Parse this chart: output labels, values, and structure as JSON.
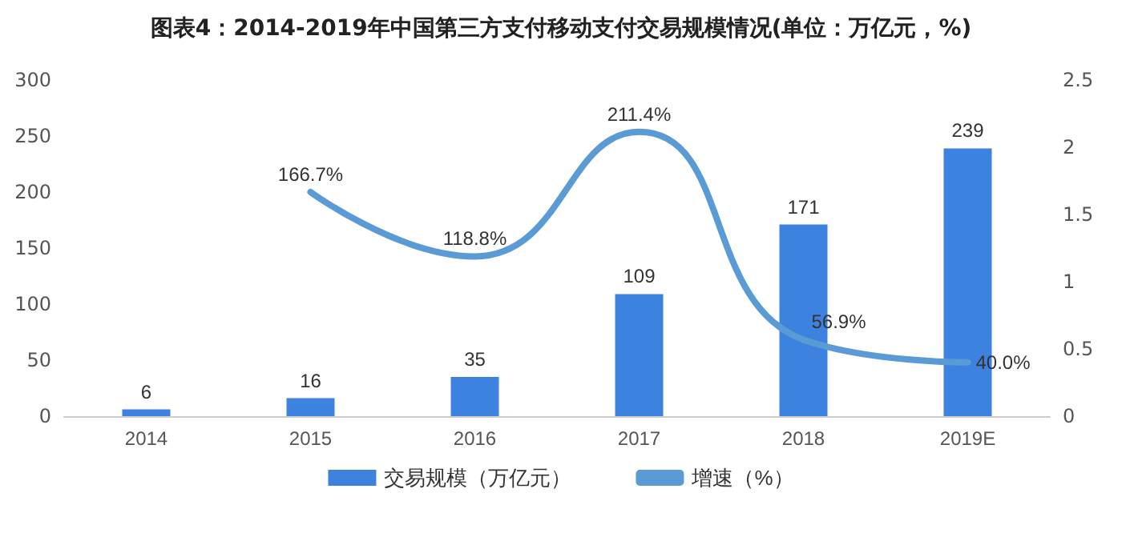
{
  "chart_data": {
    "type": "bar",
    "title": "图表4：2014-2019年中国第三方支付移动支付交易规模情况(单位：万亿元，%)",
    "categories": [
      "2014",
      "2015",
      "2016",
      "2017",
      "2018",
      "2019E"
    ],
    "series": [
      {
        "name": "交易规模（万亿元）",
        "color": "#3e82e0",
        "values": [
          6,
          16,
          35,
          109,
          171,
          239
        ]
      },
      {
        "name": "增速（%）",
        "type": "line",
        "axis": "y2",
        "color": "#5b9bd5",
        "values": [
          null,
          1.667,
          1.188,
          2.114,
          0.569,
          0.4
        ],
        "value_labels": [
          null,
          "166.7%",
          "118.8%",
          "211.4%",
          "56.9%",
          "40.0%"
        ]
      }
    ],
    "data_labels": true,
    "ylim": [
      0,
      300
    ],
    "yticks": [
      0,
      50,
      100,
      150,
      200,
      250,
      300
    ],
    "y2lim": [
      0,
      2.5
    ],
    "y2ticks": [
      0,
      0.5,
      1,
      1.5,
      2,
      2.5
    ],
    "grid": false,
    "legend": "bottom",
    "marker": "none",
    "line_style": "solid"
  }
}
